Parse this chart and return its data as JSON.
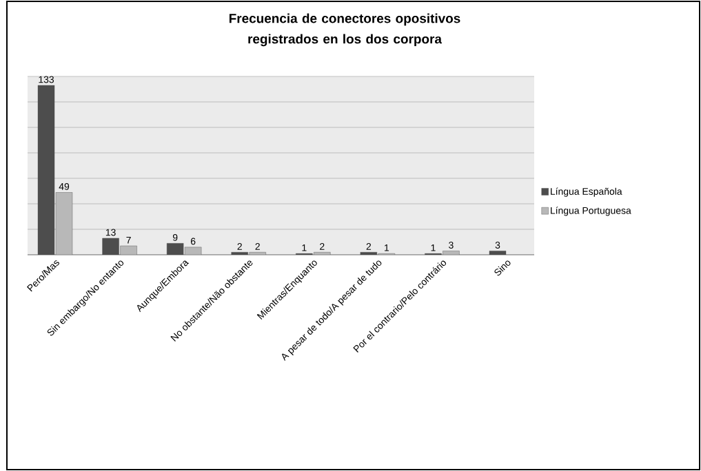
{
  "chart_data": {
    "type": "bar",
    "title": "Frecuencia de conectores opositivos registrados en los dos corpora",
    "categories": [
      "Pero/Mas",
      "Sin embargo/No entanto",
      "Aunque/Embora",
      "No obstante/Não obstante",
      "Mientras/Enquanto",
      "A pesar de todo/A pesar de tudo",
      "Por el contrario/Pelo contrário",
      "Sino"
    ],
    "series": [
      {
        "name": "Língua Española",
        "color": "#4d4d4d",
        "values": [
          133,
          13,
          9,
          2,
          1,
          2,
          1,
          3
        ]
      },
      {
        "name": "Língua Portuguesa",
        "color": "#b8b8b8",
        "values": [
          49,
          7,
          6,
          2,
          2,
          1,
          3,
          null
        ]
      }
    ],
    "ylim": [
      0,
      140
    ],
    "yticks": [
      {
        "value": 0,
        "label": null
      },
      {
        "value": 20,
        "label": null
      },
      {
        "value": 40,
        "label": null
      },
      {
        "value": 60,
        "label": null
      },
      {
        "value": 80,
        "label": null
      },
      {
        "value": 100,
        "label": null
      },
      {
        "value": 120,
        "label": null
      },
      {
        "value": 140,
        "label": null
      }
    ],
    "tick_labels": "x",
    "grid": "y",
    "legend": "right",
    "data_labels": true
  }
}
